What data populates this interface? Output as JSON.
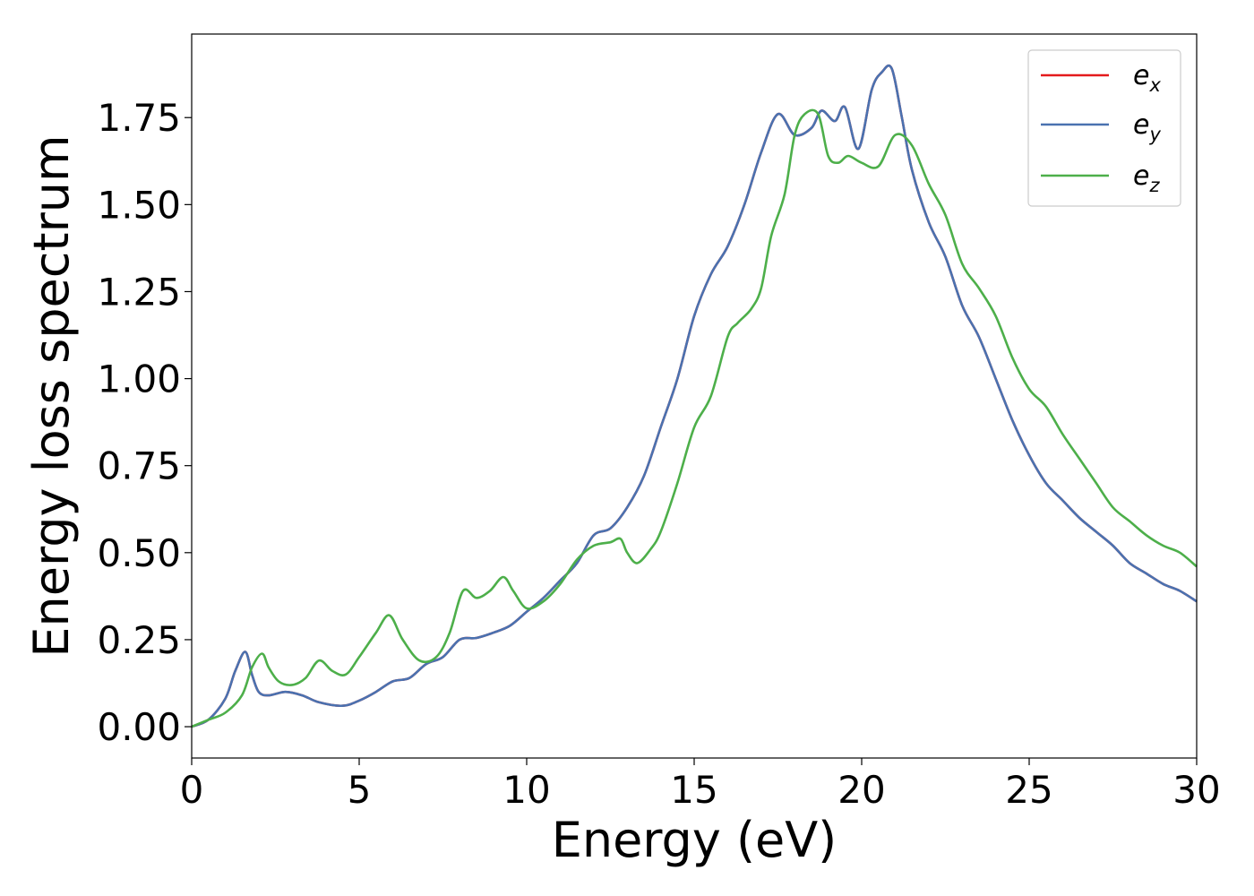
{
  "chart_data": {
    "type": "line",
    "xlabel": "Energy (eV)",
    "ylabel": "Energy loss spectrum",
    "xlim": [
      0,
      30
    ],
    "ylim": [
      -0.09,
      1.99
    ],
    "xticks": [
      0,
      5,
      10,
      15,
      20,
      25,
      30
    ],
    "xtick_labels": [
      "0",
      "5",
      "10",
      "15",
      "20",
      "25",
      "30"
    ],
    "yticks": [
      0.0,
      0.25,
      0.5,
      0.75,
      1.0,
      1.25,
      1.5,
      1.75
    ],
    "ytick_labels": [
      "0.00",
      "0.25",
      "0.50",
      "0.75",
      "1.00",
      "1.25",
      "1.50",
      "1.75"
    ],
    "grid": false,
    "legend_position": "top-right",
    "series": [
      {
        "name": "e_x",
        "legend_base": "e",
        "legend_sub": "x",
        "color": "#e41a1c",
        "x": [
          0,
          0.5,
          1,
          1.3,
          1.6,
          1.8,
          2,
          2.3,
          2.8,
          3.3,
          3.8,
          4.5,
          5,
          5.5,
          6,
          6.5,
          7,
          7.5,
          8,
          8.5,
          9,
          9.5,
          10,
          10.5,
          11,
          11.5,
          12,
          12.5,
          13,
          13.5,
          14,
          14.5,
          15,
          15.5,
          16,
          16.5,
          17,
          17.5,
          18,
          18.5,
          18.8,
          19.2,
          19.5,
          19.9,
          20.3,
          20.6,
          20.9,
          21.2,
          21.5,
          22,
          22.5,
          23,
          23.5,
          24,
          24.5,
          25,
          25.5,
          26,
          26.5,
          27,
          27.5,
          28,
          28.5,
          29,
          29.5,
          30
        ],
        "y": [
          0.0,
          0.02,
          0.08,
          0.16,
          0.215,
          0.15,
          0.1,
          0.09,
          0.1,
          0.09,
          0.07,
          0.06,
          0.075,
          0.1,
          0.13,
          0.14,
          0.18,
          0.2,
          0.25,
          0.255,
          0.27,
          0.29,
          0.33,
          0.37,
          0.42,
          0.47,
          0.55,
          0.57,
          0.63,
          0.72,
          0.86,
          1.0,
          1.18,
          1.3,
          1.38,
          1.5,
          1.65,
          1.76,
          1.7,
          1.72,
          1.77,
          1.74,
          1.78,
          1.66,
          1.83,
          1.88,
          1.89,
          1.75,
          1.6,
          1.45,
          1.35,
          1.21,
          1.12,
          1.0,
          0.88,
          0.78,
          0.7,
          0.65,
          0.6,
          0.56,
          0.52,
          0.47,
          0.44,
          0.41,
          0.39,
          0.36
        ]
      },
      {
        "name": "e_y",
        "legend_base": "e",
        "legend_sub": "y",
        "color": "#4a72b0",
        "x": [
          0,
          0.5,
          1,
          1.3,
          1.6,
          1.8,
          2,
          2.3,
          2.8,
          3.3,
          3.8,
          4.5,
          5,
          5.5,
          6,
          6.5,
          7,
          7.5,
          8,
          8.5,
          9,
          9.5,
          10,
          10.5,
          11,
          11.5,
          12,
          12.5,
          13,
          13.5,
          14,
          14.5,
          15,
          15.5,
          16,
          16.5,
          17,
          17.5,
          18,
          18.5,
          18.8,
          19.2,
          19.5,
          19.9,
          20.3,
          20.6,
          20.9,
          21.2,
          21.5,
          22,
          22.5,
          23,
          23.5,
          24,
          24.5,
          25,
          25.5,
          26,
          26.5,
          27,
          27.5,
          28,
          28.5,
          29,
          29.5,
          30
        ],
        "y": [
          0.0,
          0.02,
          0.08,
          0.16,
          0.215,
          0.15,
          0.1,
          0.09,
          0.1,
          0.09,
          0.07,
          0.06,
          0.075,
          0.1,
          0.13,
          0.14,
          0.18,
          0.2,
          0.25,
          0.255,
          0.27,
          0.29,
          0.33,
          0.37,
          0.42,
          0.47,
          0.55,
          0.57,
          0.63,
          0.72,
          0.86,
          1.0,
          1.18,
          1.3,
          1.38,
          1.5,
          1.65,
          1.76,
          1.7,
          1.72,
          1.77,
          1.74,
          1.78,
          1.66,
          1.83,
          1.88,
          1.89,
          1.75,
          1.6,
          1.45,
          1.35,
          1.21,
          1.12,
          1.0,
          0.88,
          0.78,
          0.7,
          0.65,
          0.6,
          0.56,
          0.52,
          0.47,
          0.44,
          0.41,
          0.39,
          0.36
        ]
      },
      {
        "name": "e_z",
        "legend_base": "e",
        "legend_sub": "z",
        "color": "#4daf4a",
        "x": [
          0,
          0.5,
          1,
          1.5,
          1.8,
          2.1,
          2.3,
          2.6,
          3,
          3.4,
          3.8,
          4.2,
          4.6,
          5,
          5.5,
          5.9,
          6.3,
          6.8,
          7.3,
          7.7,
          8.1,
          8.5,
          8.9,
          9.3,
          9.6,
          10,
          10.5,
          11,
          11.5,
          12,
          12.5,
          12.8,
          13,
          13.3,
          13.7,
          14,
          14.5,
          15,
          15.5,
          16,
          16.3,
          16.7,
          17,
          17.3,
          17.7,
          18,
          18.3,
          18.7,
          19,
          19.3,
          19.6,
          20,
          20.5,
          21,
          21.5,
          22,
          22.5,
          23,
          23.5,
          24,
          24.5,
          25,
          25.5,
          26,
          26.5,
          27,
          27.5,
          28,
          28.5,
          29,
          29.5,
          30
        ],
        "y": [
          0.0,
          0.02,
          0.04,
          0.09,
          0.17,
          0.21,
          0.17,
          0.13,
          0.12,
          0.14,
          0.19,
          0.16,
          0.15,
          0.2,
          0.27,
          0.32,
          0.25,
          0.19,
          0.2,
          0.27,
          0.39,
          0.37,
          0.39,
          0.43,
          0.39,
          0.34,
          0.36,
          0.41,
          0.48,
          0.52,
          0.53,
          0.54,
          0.5,
          0.47,
          0.51,
          0.56,
          0.7,
          0.86,
          0.95,
          1.12,
          1.16,
          1.2,
          1.26,
          1.41,
          1.53,
          1.7,
          1.76,
          1.76,
          1.64,
          1.62,
          1.64,
          1.62,
          1.61,
          1.7,
          1.67,
          1.56,
          1.47,
          1.33,
          1.26,
          1.18,
          1.06,
          0.97,
          0.92,
          0.84,
          0.77,
          0.7,
          0.63,
          0.59,
          0.55,
          0.52,
          0.5,
          0.46
        ]
      }
    ]
  }
}
